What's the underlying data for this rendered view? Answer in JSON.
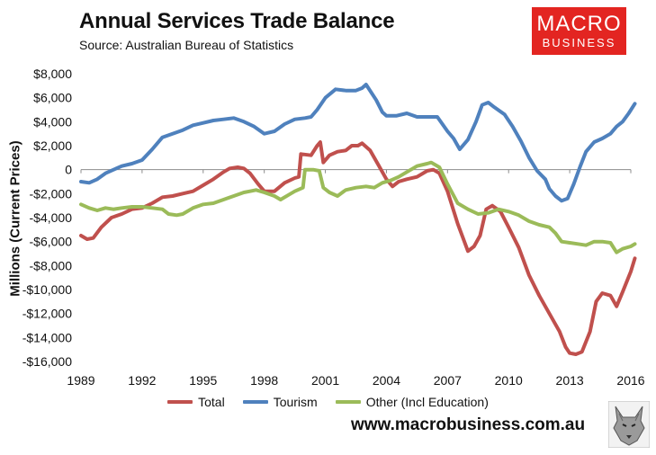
{
  "header": {
    "title": "Annual Services Trade Balance",
    "source": "Source: Australian Bureau of Statistics"
  },
  "logo": {
    "line1": "MACRO",
    "line2": "BUSINESS"
  },
  "footer": {
    "website": "www.macrobusiness.com.au"
  },
  "colors": {
    "total": "#c0504d",
    "tourism": "#4f81bd",
    "other": "#9bbb59",
    "logo_bg": "#e32521"
  },
  "chart_data": {
    "type": "line",
    "title": "Annual Services Trade Balance",
    "xlabel": "",
    "ylabel": "Millions (Current Prices)",
    "xlim": [
      1989,
      2016
    ],
    "ylim": [
      -16000,
      8000
    ],
    "x_ticks": [
      1989,
      1992,
      1995,
      1998,
      2001,
      2004,
      2007,
      2010,
      2013,
      2016
    ],
    "y_ticks": [
      8000,
      6000,
      4000,
      2000,
      0,
      -2000,
      -4000,
      -6000,
      -8000,
      -10000,
      -12000,
      -14000,
      -16000
    ],
    "y_tick_labels": [
      "$8,000",
      "$6,000",
      "$4,000",
      "$2,000",
      "0",
      "-$2,000",
      "-$4,000",
      "-$6,000",
      "-$8,000",
      "-$10,000",
      "-$12,000",
      "-$14,000",
      "-$16,000"
    ],
    "gridlines": false,
    "legend": "bottom",
    "series": [
      {
        "name": "Total",
        "color": "#c0504d",
        "points": [
          [
            1989.0,
            -5500
          ],
          [
            1989.3,
            -5800
          ],
          [
            1989.6,
            -5700
          ],
          [
            1990.0,
            -4800
          ],
          [
            1990.5,
            -4000
          ],
          [
            1991.0,
            -3700
          ],
          [
            1991.5,
            -3300
          ],
          [
            1992.0,
            -3200
          ],
          [
            1992.5,
            -2800
          ],
          [
            1993.0,
            -2300
          ],
          [
            1993.5,
            -2200
          ],
          [
            1994.0,
            -2000
          ],
          [
            1994.5,
            -1800
          ],
          [
            1995.0,
            -1300
          ],
          [
            1995.5,
            -800
          ],
          [
            1996.0,
            -200
          ],
          [
            1996.3,
            100
          ],
          [
            1996.7,
            200
          ],
          [
            1997.0,
            100
          ],
          [
            1997.3,
            -300
          ],
          [
            1997.7,
            -1200
          ],
          [
            1998.0,
            -1800
          ],
          [
            1998.5,
            -1800
          ],
          [
            1999.0,
            -1100
          ],
          [
            1999.5,
            -700
          ],
          [
            1999.7,
            -600
          ],
          [
            1999.8,
            1300
          ],
          [
            2000.3,
            1200
          ],
          [
            2000.6,
            2000
          ],
          [
            2000.75,
            2300
          ],
          [
            2000.9,
            600
          ],
          [
            2001.2,
            1200
          ],
          [
            2001.6,
            1500
          ],
          [
            2002.0,
            1600
          ],
          [
            2002.3,
            2000
          ],
          [
            2002.6,
            2000
          ],
          [
            2002.8,
            2200
          ],
          [
            2003.2,
            1600
          ],
          [
            2003.6,
            400
          ],
          [
            2004.0,
            -800
          ],
          [
            2004.3,
            -1400
          ],
          [
            2004.6,
            -1000
          ],
          [
            2005.0,
            -800
          ],
          [
            2005.5,
            -600
          ],
          [
            2006.0,
            -100
          ],
          [
            2006.3,
            0
          ],
          [
            2006.6,
            -300
          ],
          [
            2007.0,
            -1800
          ],
          [
            2007.5,
            -4500
          ],
          [
            2008.0,
            -6800
          ],
          [
            2008.3,
            -6400
          ],
          [
            2008.6,
            -5500
          ],
          [
            2008.9,
            -3300
          ],
          [
            2009.2,
            -3000
          ],
          [
            2009.6,
            -3500
          ],
          [
            2010.0,
            -4800
          ],
          [
            2010.5,
            -6500
          ],
          [
            2011.0,
            -8800
          ],
          [
            2011.5,
            -10500
          ],
          [
            2012.0,
            -12000
          ],
          [
            2012.5,
            -13500
          ],
          [
            2012.8,
            -14800
          ],
          [
            2013.0,
            -15300
          ],
          [
            2013.3,
            -15400
          ],
          [
            2013.6,
            -15200
          ],
          [
            2014.0,
            -13500
          ],
          [
            2014.3,
            -11000
          ],
          [
            2014.6,
            -10300
          ],
          [
            2015.0,
            -10500
          ],
          [
            2015.3,
            -11400
          ],
          [
            2015.6,
            -10200
          ],
          [
            2016.0,
            -8500
          ],
          [
            2016.2,
            -7400
          ]
        ]
      },
      {
        "name": "Tourism",
        "color": "#4f81bd",
        "points": [
          [
            1989.0,
            -1000
          ],
          [
            1989.4,
            -1100
          ],
          [
            1989.8,
            -800
          ],
          [
            1990.2,
            -300
          ],
          [
            1990.6,
            0
          ],
          [
            1991.0,
            300
          ],
          [
            1991.5,
            500
          ],
          [
            1992.0,
            800
          ],
          [
            1992.5,
            1700
          ],
          [
            1993.0,
            2700
          ],
          [
            1993.5,
            3000
          ],
          [
            1994.0,
            3300
          ],
          [
            1994.5,
            3700
          ],
          [
            1995.0,
            3900
          ],
          [
            1995.5,
            4100
          ],
          [
            1996.0,
            4200
          ],
          [
            1996.5,
            4300
          ],
          [
            1997.0,
            4000
          ],
          [
            1997.5,
            3600
          ],
          [
            1998.0,
            3000
          ],
          [
            1998.5,
            3200
          ],
          [
            1999.0,
            3800
          ],
          [
            1999.5,
            4200
          ],
          [
            2000.0,
            4300
          ],
          [
            2000.3,
            4400
          ],
          [
            2000.6,
            5000
          ],
          [
            2001.0,
            6000
          ],
          [
            2001.5,
            6700
          ],
          [
            2002.0,
            6600
          ],
          [
            2002.5,
            6600
          ],
          [
            2002.8,
            6800
          ],
          [
            2003.0,
            7100
          ],
          [
            2003.5,
            5800
          ],
          [
            2003.8,
            4800
          ],
          [
            2004.0,
            4500
          ],
          [
            2004.5,
            4500
          ],
          [
            2005.0,
            4700
          ],
          [
            2005.5,
            4400
          ],
          [
            2006.0,
            4400
          ],
          [
            2006.5,
            4400
          ],
          [
            2007.0,
            3200
          ],
          [
            2007.3,
            2600
          ],
          [
            2007.6,
            1700
          ],
          [
            2008.0,
            2500
          ],
          [
            2008.4,
            4000
          ],
          [
            2008.7,
            5400
          ],
          [
            2009.0,
            5600
          ],
          [
            2009.3,
            5200
          ],
          [
            2009.8,
            4600
          ],
          [
            2010.2,
            3600
          ],
          [
            2010.6,
            2400
          ],
          [
            2011.0,
            1000
          ],
          [
            2011.4,
            -100
          ],
          [
            2011.8,
            -800
          ],
          [
            2012.0,
            -1600
          ],
          [
            2012.3,
            -2200
          ],
          [
            2012.6,
            -2600
          ],
          [
            2012.9,
            -2400
          ],
          [
            2013.2,
            -1200
          ],
          [
            2013.5,
            200
          ],
          [
            2013.8,
            1500
          ],
          [
            2014.2,
            2300
          ],
          [
            2014.6,
            2600
          ],
          [
            2015.0,
            3000
          ],
          [
            2015.3,
            3600
          ],
          [
            2015.6,
            4000
          ],
          [
            2015.9,
            4700
          ],
          [
            2016.2,
            5500
          ]
        ]
      },
      {
        "name": "Other (Incl Education)",
        "color": "#9bbb59",
        "points": [
          [
            1989.0,
            -2900
          ],
          [
            1989.4,
            -3200
          ],
          [
            1989.8,
            -3400
          ],
          [
            1990.2,
            -3200
          ],
          [
            1990.6,
            -3300
          ],
          [
            1991.0,
            -3200
          ],
          [
            1991.5,
            -3100
          ],
          [
            1992.0,
            -3100
          ],
          [
            1992.5,
            -3200
          ],
          [
            1993.0,
            -3300
          ],
          [
            1993.3,
            -3700
          ],
          [
            1993.7,
            -3800
          ],
          [
            1994.0,
            -3700
          ],
          [
            1994.5,
            -3200
          ],
          [
            1995.0,
            -2900
          ],
          [
            1995.5,
            -2800
          ],
          [
            1996.0,
            -2500
          ],
          [
            1996.5,
            -2200
          ],
          [
            1997.0,
            -1900
          ],
          [
            1997.3,
            -1800
          ],
          [
            1997.6,
            -1700
          ],
          [
            1998.0,
            -1900
          ],
          [
            1998.5,
            -2200
          ],
          [
            1998.8,
            -2500
          ],
          [
            1999.2,
            -2100
          ],
          [
            1999.5,
            -1800
          ],
          [
            1999.9,
            -1500
          ],
          [
            2000.0,
            0
          ],
          [
            2000.4,
            0
          ],
          [
            2000.7,
            -100
          ],
          [
            2000.9,
            -1500
          ],
          [
            2001.2,
            -1900
          ],
          [
            2001.6,
            -2200
          ],
          [
            2002.0,
            -1700
          ],
          [
            2002.5,
            -1500
          ],
          [
            2003.0,
            -1400
          ],
          [
            2003.4,
            -1500
          ],
          [
            2003.8,
            -1100
          ],
          [
            2004.2,
            -900
          ],
          [
            2004.6,
            -600
          ],
          [
            2005.0,
            -200
          ],
          [
            2005.5,
            300
          ],
          [
            2006.0,
            500
          ],
          [
            2006.2,
            600
          ],
          [
            2006.6,
            200
          ],
          [
            2007.0,
            -1200
          ],
          [
            2007.5,
            -2800
          ],
          [
            2008.0,
            -3300
          ],
          [
            2008.5,
            -3700
          ],
          [
            2009.0,
            -3600
          ],
          [
            2009.5,
            -3300
          ],
          [
            2010.0,
            -3500
          ],
          [
            2010.5,
            -3800
          ],
          [
            2011.0,
            -4300
          ],
          [
            2011.5,
            -4600
          ],
          [
            2012.0,
            -4800
          ],
          [
            2012.3,
            -5300
          ],
          [
            2012.6,
            -6000
          ],
          [
            2013.0,
            -6100
          ],
          [
            2013.4,
            -6200
          ],
          [
            2013.8,
            -6300
          ],
          [
            2014.2,
            -6000
          ],
          [
            2014.6,
            -6000
          ],
          [
            2015.0,
            -6100
          ],
          [
            2015.3,
            -6900
          ],
          [
            2015.6,
            -6600
          ],
          [
            2016.0,
            -6400
          ],
          [
            2016.2,
            -6200
          ]
        ]
      }
    ]
  }
}
